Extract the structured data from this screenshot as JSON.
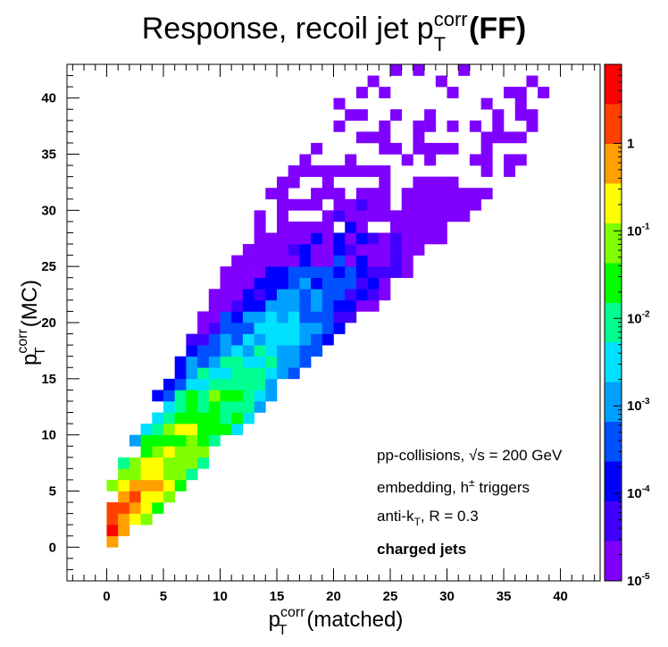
{
  "chart_data": {
    "type": "heatmap",
    "title": {
      "main": "Response, recoil jet p",
      "sup": "corr",
      "sub": "T",
      "tag": "(FF)"
    },
    "xlabel": {
      "main": "p",
      "sup": "corr",
      "sub": "T",
      "rest": "(matched)"
    },
    "ylabel": {
      "main": "p",
      "sup": "corr",
      "sub": "T",
      "rest": "(MC)"
    },
    "xlim": [
      -3.5,
      43.5
    ],
    "ylim": [
      -3,
      43
    ],
    "x_ticks": [
      "0",
      "5",
      "10",
      "15",
      "20",
      "25",
      "30",
      "35",
      "40"
    ],
    "y_ticks": [
      "0",
      "5",
      "10",
      "15",
      "20",
      "25",
      "30",
      "35",
      "40"
    ],
    "z_scale": "log",
    "zlim": [
      1e-05,
      8
    ],
    "z_ticks": [
      {
        "base": "10",
        "exp": "-5",
        "value": 1e-05
      },
      {
        "base": "10",
        "exp": "-4",
        "value": 0.0001
      },
      {
        "base": "10",
        "exp": "-3",
        "value": 0.001
      },
      {
        "base": "10",
        "exp": "-2",
        "value": 0.01
      },
      {
        "base": "10",
        "exp": "-1",
        "value": 0.1
      },
      {
        "base": "1",
        "exp": "",
        "value": 1
      }
    ],
    "bin_width": 1,
    "colormap": [
      "#7f00ff",
      "#4000ff",
      "#0000ff",
      "#0050ff",
      "#00a0ff",
      "#00e0ff",
      "#00ff90",
      "#00ff00",
      "#80ff00",
      "#ffff00",
      "#ffa000",
      "#ff4000",
      "#ff0000"
    ],
    "annotations": [
      {
        "parts": [
          "pp-collisions, ",
          "√s",
          " = 200 GeV"
        ]
      },
      {
        "parts": [
          "embedding, h",
          "±",
          " triggers"
        ]
      },
      {
        "parts": [
          "anti-k",
          "T",
          ", R = 0.3"
        ]
      },
      {
        "parts": [
          "charged jets"
        ]
      }
    ]
  }
}
